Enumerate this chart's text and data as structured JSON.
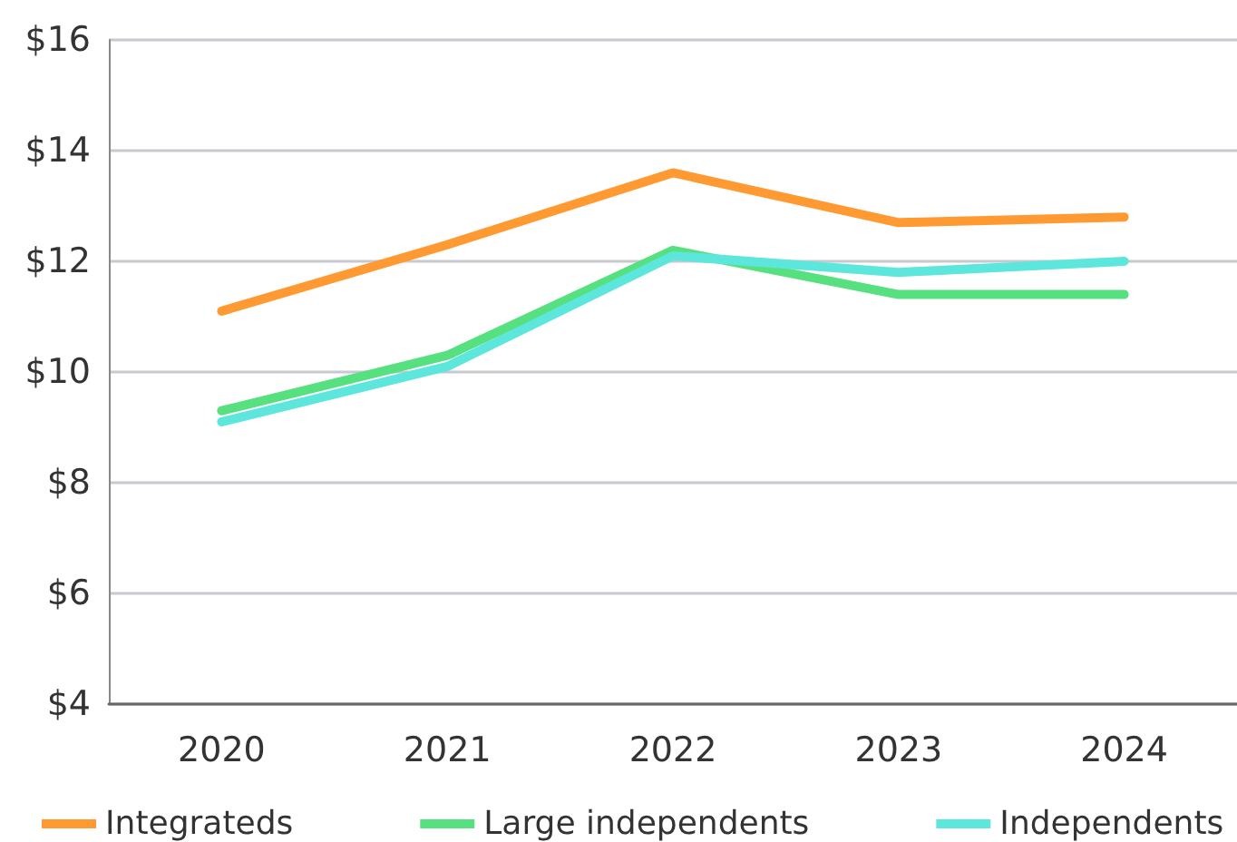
{
  "chart_data": {
    "type": "line",
    "categories": [
      "2020",
      "2021",
      "2022",
      "2023",
      "2024"
    ],
    "series": [
      {
        "name": "Integrateds",
        "color": "#ff9a33",
        "values": [
          11.1,
          12.3,
          13.6,
          12.7,
          12.8
        ]
      },
      {
        "name": "Large independents",
        "color": "#57e07f",
        "values": [
          9.3,
          10.3,
          12.2,
          11.4,
          11.4
        ]
      },
      {
        "name": "Independents",
        "color": "#5ce6dc",
        "values": [
          9.1,
          10.1,
          12.1,
          11.8,
          12.0
        ]
      }
    ],
    "ylim": [
      4,
      16
    ],
    "yticks": [
      {
        "value": 4,
        "label": "$4"
      },
      {
        "value": 6,
        "label": "$6"
      },
      {
        "value": 8,
        "label": "$8"
      },
      {
        "value": 10,
        "label": "$10"
      },
      {
        "value": 12,
        "label": "$12"
      },
      {
        "value": 14,
        "label": "$14"
      },
      {
        "value": 16,
        "label": "$16"
      }
    ],
    "grid": "y",
    "legend": "bottom",
    "marker": "none",
    "line_style": "solid"
  }
}
